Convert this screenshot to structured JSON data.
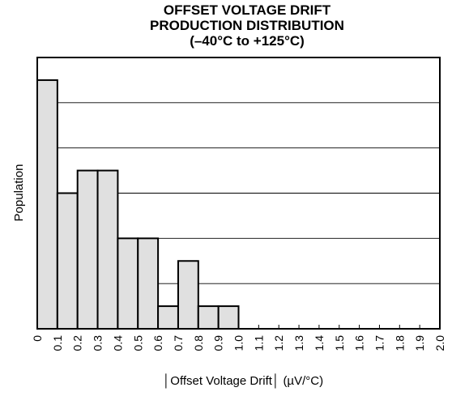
{
  "chart_data": {
    "type": "bar",
    "title_lines": [
      "OFFSET VOLTAGE DRIFT",
      "PRODUCTION DISTRIBUTION",
      "(–40°C to +125°C)"
    ],
    "xlabel": "│Offset Voltage Drift│ (µV/°C)",
    "ylabel": "Population",
    "x_ticks": [
      "0",
      "0.1",
      "0.2",
      "0.3",
      "0.4",
      "0.5",
      "0.6",
      "0.7",
      "0.8",
      "0.9",
      "1.0",
      "1.1",
      "1.2",
      "1.3",
      "1.4",
      "1.5",
      "1.6",
      "1.7",
      "1.8",
      "1.9",
      "2.0"
    ],
    "bins": [
      {
        "from": 0.0,
        "to": 0.1,
        "value": 11
      },
      {
        "from": 0.1,
        "to": 0.2,
        "value": 6
      },
      {
        "from": 0.2,
        "to": 0.3,
        "value": 7
      },
      {
        "from": 0.3,
        "to": 0.4,
        "value": 7
      },
      {
        "from": 0.4,
        "to": 0.5,
        "value": 4
      },
      {
        "from": 0.5,
        "to": 0.6,
        "value": 4
      },
      {
        "from": 0.6,
        "to": 0.7,
        "value": 1
      },
      {
        "from": 0.7,
        "to": 0.8,
        "value": 3
      },
      {
        "from": 0.8,
        "to": 0.9,
        "value": 1
      },
      {
        "from": 0.9,
        "to": 1.0,
        "value": 1
      }
    ],
    "xlim": [
      0,
      2.0
    ],
    "ylim": [
      0,
      12
    ],
    "grid_lines_y": [
      2,
      4,
      6,
      8,
      10
    ],
    "grid": true,
    "legend": "none",
    "bar_fill": "#e0e0e0",
    "bar_stroke": "#000000"
  }
}
